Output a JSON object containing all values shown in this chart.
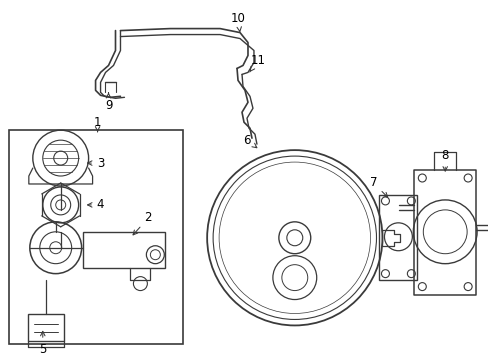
{
  "background_color": "#ffffff",
  "line_color": "#3a3a3a",
  "label_color": "#000000",
  "figsize": [
    4.89,
    3.6
  ],
  "dpi": 100,
  "lw": 1.1
}
